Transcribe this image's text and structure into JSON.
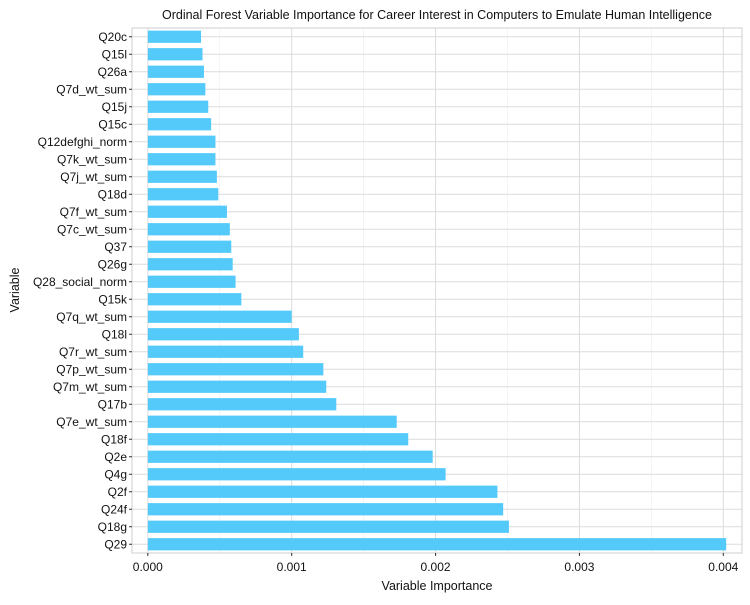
{
  "chart_data": {
    "type": "bar",
    "orientation": "horizontal",
    "title": "Ordinal Forest Variable Importance for Career Interest in Computers to Emulate Human Intelligence",
    "xlabel": "Variable Importance",
    "ylabel": "Variable",
    "xlim": [
      -0.00011,
      0.00413
    ],
    "x_ticks": [
      0.0,
      0.001,
      0.002,
      0.003,
      0.004
    ],
    "x_tick_labels": [
      "0.000",
      "0.001",
      "0.002",
      "0.003",
      "0.004"
    ],
    "grid": true,
    "bar_color": "#54CAFB",
    "categories": [
      "Q20c",
      "Q15l",
      "Q26a",
      "Q7d_wt_sum",
      "Q15j",
      "Q15c",
      "Q12defghi_norm",
      "Q7k_wt_sum",
      "Q7j_wt_sum",
      "Q18d",
      "Q7f_wt_sum",
      "Q7c_wt_sum",
      "Q37",
      "Q26g",
      "Q28_social_norm",
      "Q15k",
      "Q7q_wt_sum",
      "Q18l",
      "Q7r_wt_sum",
      "Q7p_wt_sum",
      "Q7m_wt_sum",
      "Q17b",
      "Q7e_wt_sum",
      "Q18f",
      "Q2e",
      "Q4g",
      "Q2f",
      "Q24f",
      "Q18g",
      "Q29"
    ],
    "values": [
      0.00037,
      0.00038,
      0.00039,
      0.0004,
      0.00042,
      0.00044,
      0.00047,
      0.00047,
      0.00048,
      0.00049,
      0.00055,
      0.00057,
      0.00058,
      0.00059,
      0.00061,
      0.00065,
      0.001,
      0.00105,
      0.00108,
      0.00122,
      0.00124,
      0.00131,
      0.00173,
      0.00181,
      0.00198,
      0.00207,
      0.00243,
      0.00247,
      0.00251,
      0.00402
    ]
  }
}
